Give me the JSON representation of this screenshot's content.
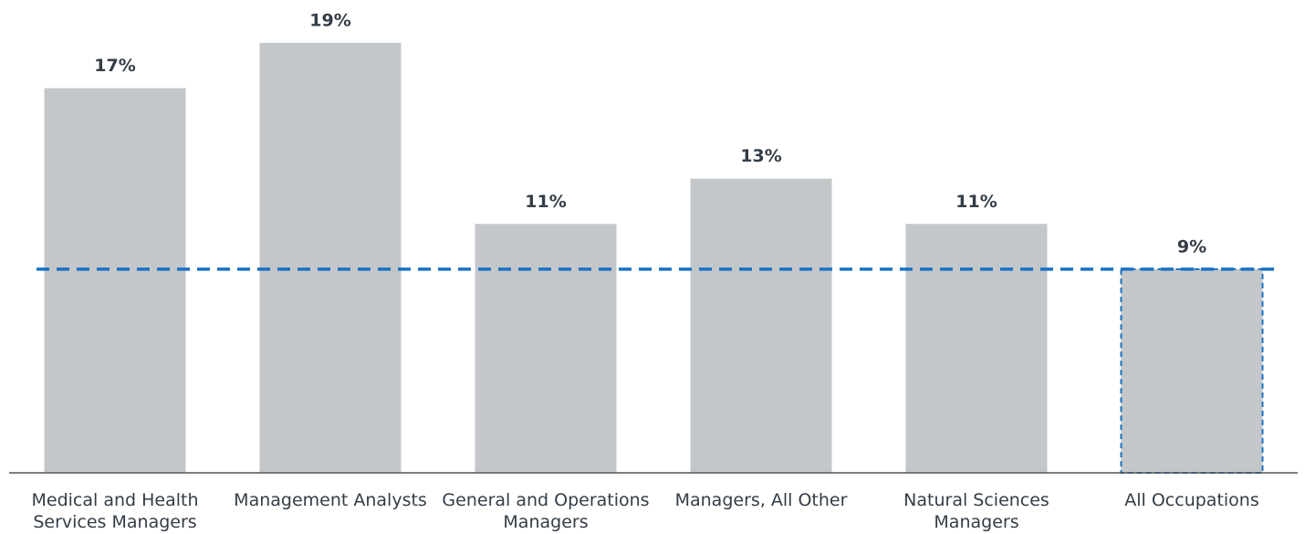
{
  "chart_data": {
    "type": "bar",
    "categories": [
      "Medical and Health Services Managers",
      "Management Analysts",
      "General and Operations Managers",
      "Managers, All Other",
      "Natural Sciences Managers",
      "All Occupations"
    ],
    "values": [
      17,
      19,
      11,
      13,
      11,
      9
    ],
    "value_labels": [
      "17%",
      "19%",
      "11%",
      "13%",
      "11%",
      "9%"
    ],
    "color": "#c4c7ca",
    "reference_color": "#1a72c4"
  }
}
